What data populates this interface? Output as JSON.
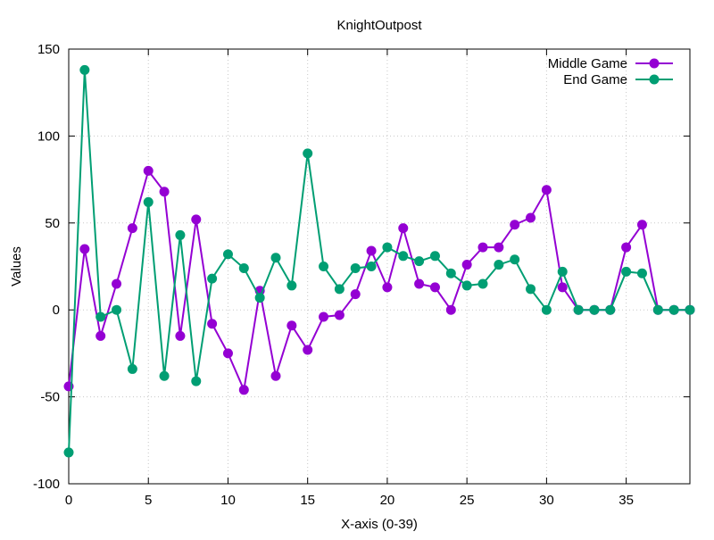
{
  "chart_data": {
    "type": "line",
    "title": "KnightOutpost",
    "xlabel": "X-axis (0-39)",
    "ylabel": "Values",
    "xlim": [
      0,
      39
    ],
    "ylim": [
      -100,
      150
    ],
    "xticks": [
      0,
      5,
      10,
      15,
      20,
      25,
      30,
      35
    ],
    "yticks": [
      -100,
      -50,
      0,
      50,
      100,
      150
    ],
    "grid": true,
    "legend_position": "top-right",
    "x": [
      0,
      1,
      2,
      3,
      4,
      5,
      6,
      7,
      8,
      9,
      10,
      11,
      12,
      13,
      14,
      15,
      16,
      17,
      18,
      19,
      20,
      21,
      22,
      23,
      24,
      25,
      26,
      27,
      28,
      29,
      30,
      31,
      32,
      33,
      34,
      35,
      36,
      37,
      38,
      39
    ],
    "series": [
      {
        "name": "Middle Game",
        "color": "#9400d3",
        "values": [
          -44,
          35,
          -15,
          15,
          47,
          80,
          68,
          -15,
          52,
          -8,
          -25,
          -46,
          11,
          -38,
          -9,
          -23,
          -4,
          -3,
          9,
          34,
          13,
          47,
          15,
          13,
          0,
          26,
          36,
          36,
          49,
          53,
          69,
          13,
          0,
          0,
          0,
          36,
          49,
          0,
          0,
          0
        ]
      },
      {
        "name": "End Game",
        "color": "#009e73",
        "values": [
          -82,
          138,
          -4,
          0,
          -34,
          62,
          -38,
          43,
          -41,
          18,
          32,
          24,
          7,
          30,
          14,
          90,
          25,
          12,
          24,
          25,
          36,
          31,
          28,
          31,
          21,
          14,
          15,
          26,
          29,
          12,
          0,
          22,
          0,
          0,
          0,
          22,
          21,
          0,
          0,
          0
        ]
      }
    ]
  }
}
